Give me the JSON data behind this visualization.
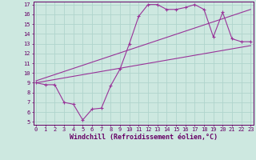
{
  "xlabel": "Windchill (Refroidissement éolien,°C)",
  "xlim": [
    0,
    23
  ],
  "ylim": [
    5,
    17
  ],
  "xticks": [
    0,
    1,
    2,
    3,
    4,
    5,
    6,
    7,
    8,
    9,
    10,
    11,
    12,
    13,
    14,
    15,
    16,
    17,
    18,
    19,
    20,
    21,
    22,
    23
  ],
  "yticks": [
    5,
    6,
    7,
    8,
    9,
    10,
    11,
    12,
    13,
    14,
    15,
    16,
    17
  ],
  "background_color": "#cde8e0",
  "grid_color": "#b0d4cc",
  "line_color": "#993399",
  "line1_x": [
    0,
    1,
    2,
    3,
    4,
    5,
    6,
    7,
    8,
    9,
    10,
    11,
    12,
    13,
    14,
    15,
    16,
    17,
    18,
    19,
    20,
    21,
    22,
    23
  ],
  "line1_y": [
    9.0,
    8.8,
    8.8,
    7.0,
    6.8,
    5.2,
    6.3,
    6.4,
    8.7,
    10.4,
    13.0,
    15.8,
    17.0,
    17.0,
    16.5,
    16.5,
    16.7,
    17.0,
    16.5,
    13.7,
    16.2,
    13.5,
    13.2,
    13.2
  ],
  "line2_x": [
    0,
    23
  ],
  "line2_y": [
    9.2,
    16.5
  ],
  "line3_x": [
    0,
    23
  ],
  "line3_y": [
    9.0,
    12.8
  ],
  "font_color": "#660066",
  "spine_color": "#660066",
  "tick_fontsize": 5.0,
  "label_fontsize": 6.0
}
